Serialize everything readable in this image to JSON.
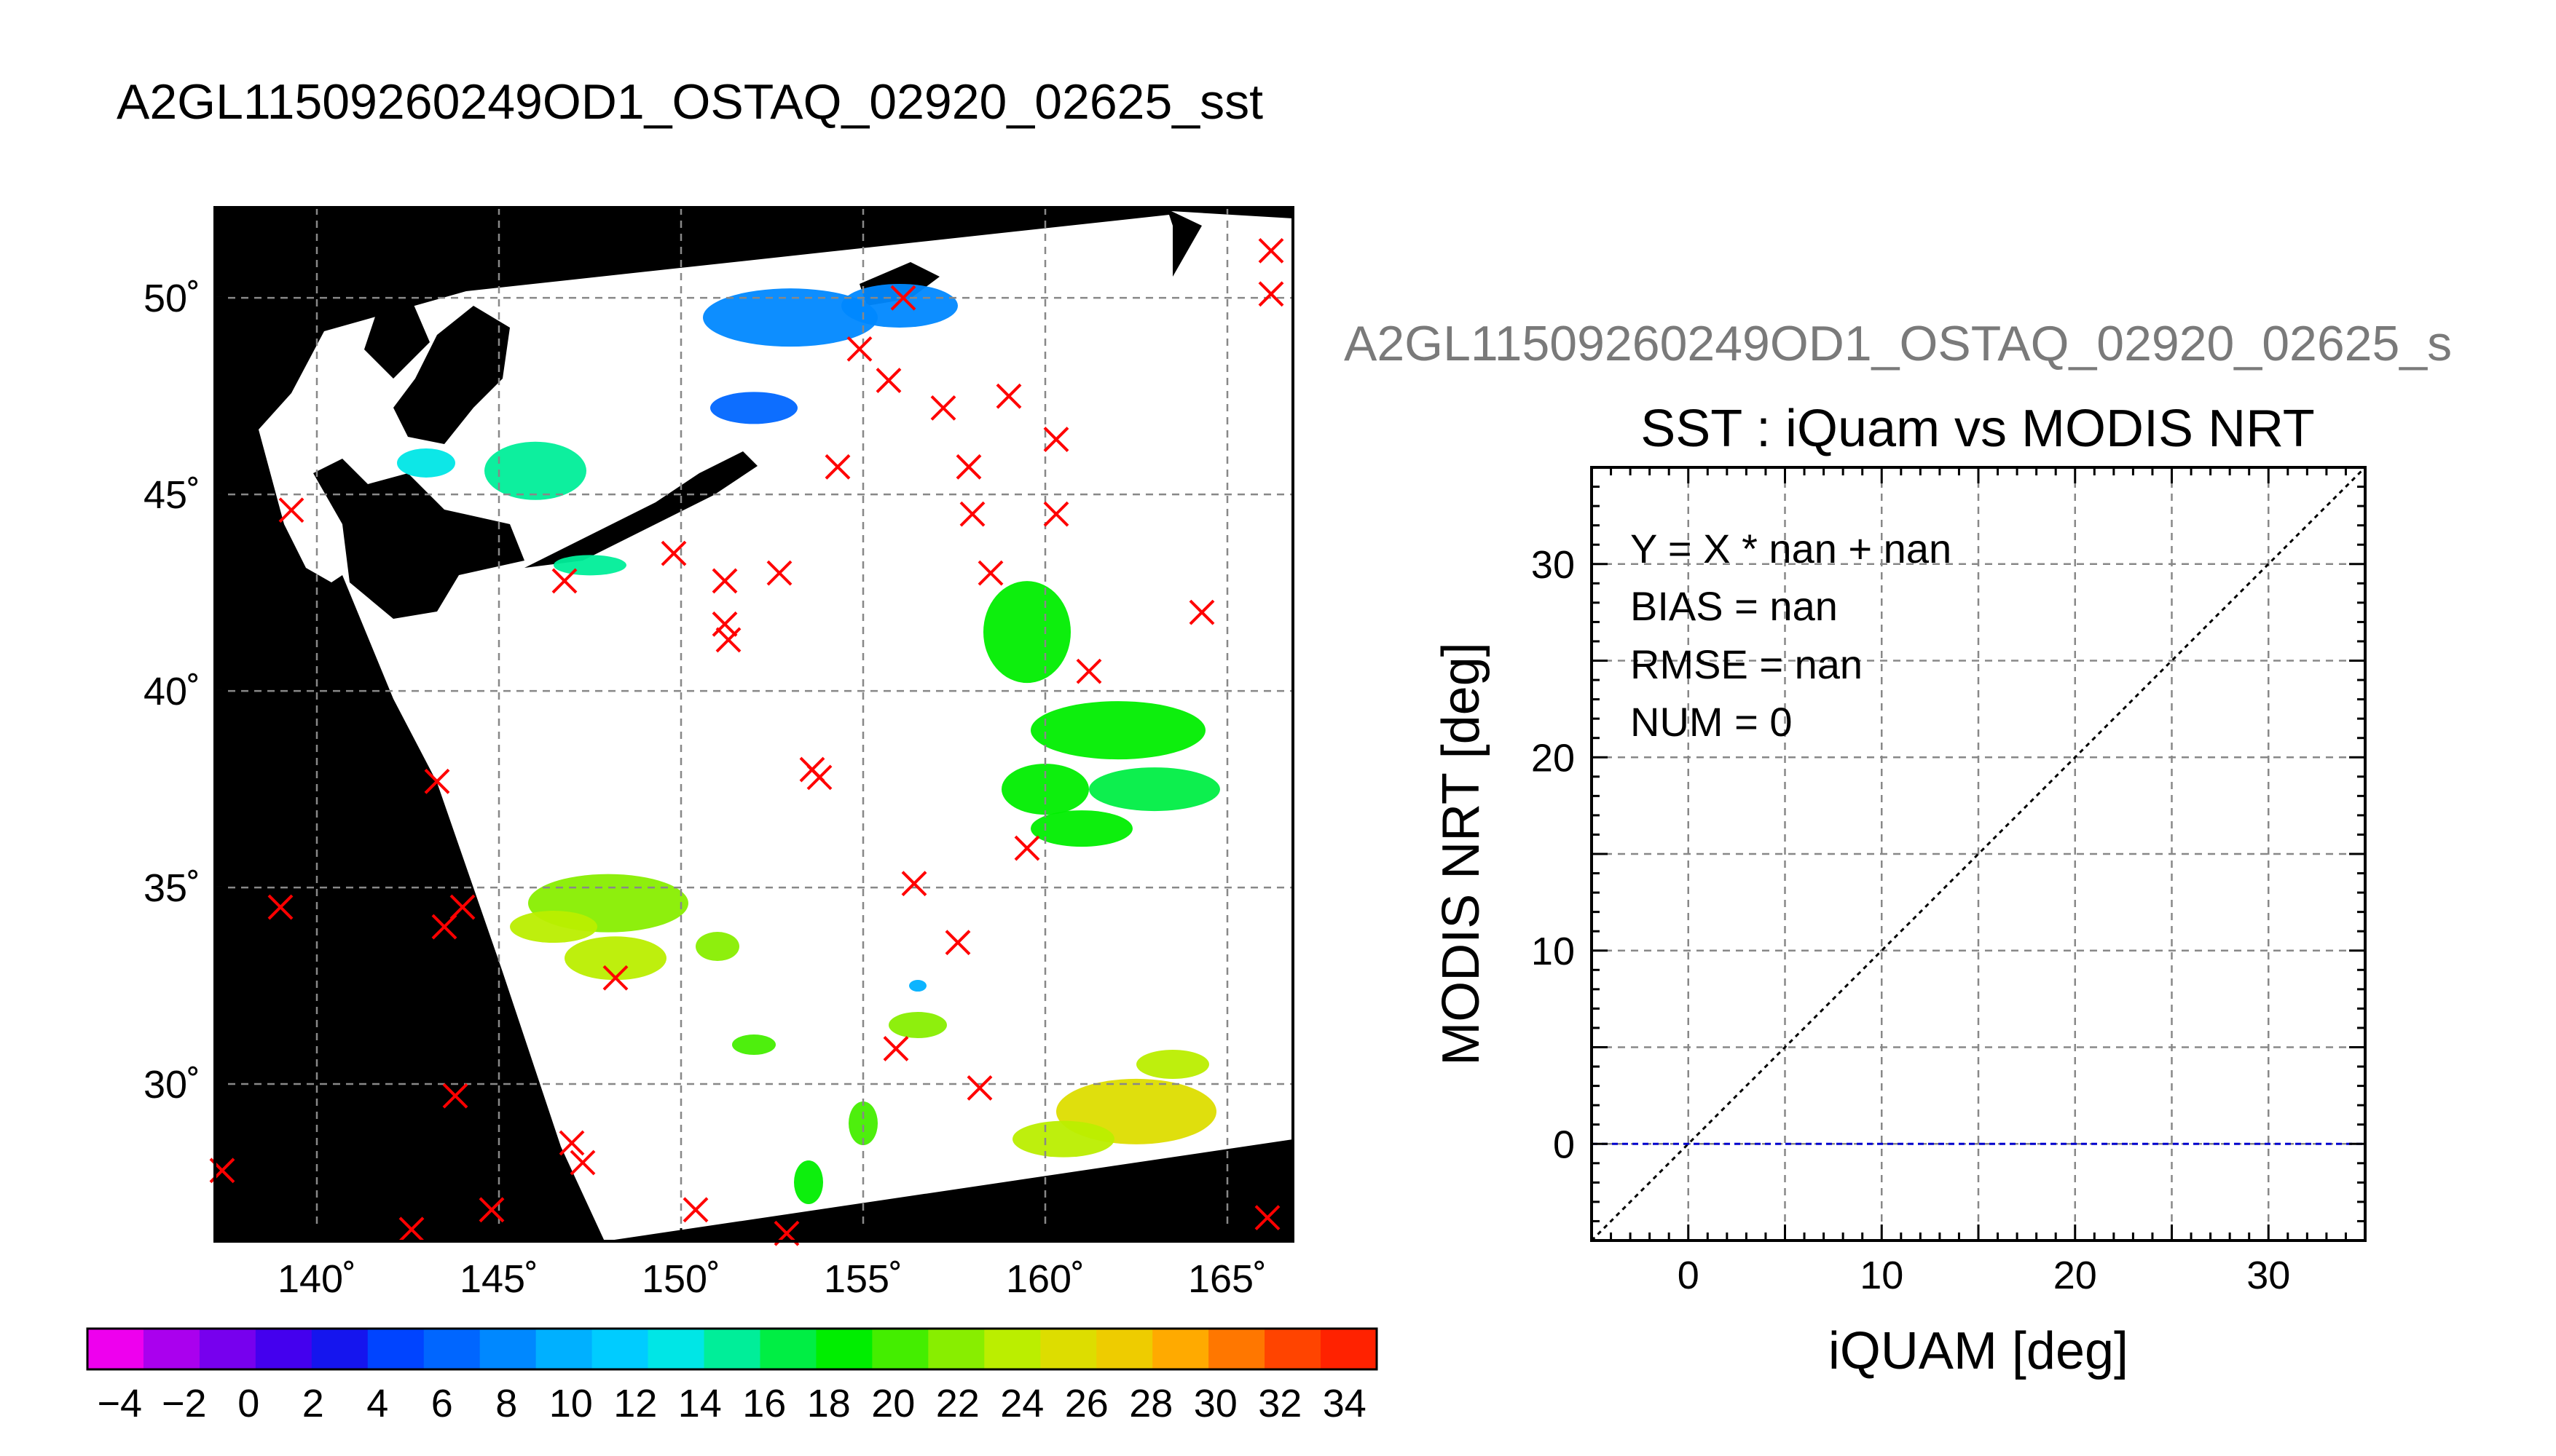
{
  "figure": {
    "title": "A2GL11509260249OD1_OSTAQ_02920_02625_sst",
    "subtitle": "A2GL11509260249OD1_OSTAQ_02920_02625_s"
  },
  "map": {
    "lon_range": [
      137.2,
      166.8
    ],
    "lat_range": [
      26.0,
      52.3
    ],
    "lon_ticks": [
      140,
      145,
      150,
      155,
      160,
      165
    ],
    "lon_tick_labels": [
      "140˚",
      "145˚",
      "150˚",
      "155˚",
      "160˚",
      "165˚"
    ],
    "lat_ticks": [
      30,
      35,
      40,
      45,
      50
    ],
    "lat_tick_labels": [
      "30˚",
      "35˚",
      "40˚",
      "45˚",
      "50˚"
    ],
    "swath_color": "#ffffff",
    "land_nodata_color": "#000000",
    "matchup_marker": "x",
    "matchup_color": "#ff0000",
    "matchups": [
      [
        139.3,
        44.6
      ],
      [
        139.0,
        34.5
      ],
      [
        137.4,
        27.8
      ],
      [
        142.6,
        26.3
      ],
      [
        143.3,
        37.7
      ],
      [
        143.5,
        34.0
      ],
      [
        144.0,
        34.5
      ],
      [
        143.8,
        29.7
      ],
      [
        144.8,
        26.8
      ],
      [
        146.8,
        42.8
      ],
      [
        147.0,
        28.5
      ],
      [
        147.3,
        28.0
      ],
      [
        148.2,
        32.7
      ],
      [
        149.8,
        43.5
      ],
      [
        151.2,
        42.8
      ],
      [
        151.2,
        41.7
      ],
      [
        151.3,
        41.3
      ],
      [
        152.7,
        43.0
      ],
      [
        150.4,
        26.8
      ],
      [
        152.9,
        26.2
      ],
      [
        153.6,
        38.0
      ],
      [
        153.8,
        37.8
      ],
      [
        154.3,
        45.7
      ],
      [
        154.9,
        48.7
      ],
      [
        155.7,
        47.9
      ],
      [
        156.1,
        50.0
      ],
      [
        156.4,
        35.1
      ],
      [
        155.9,
        30.9
      ],
      [
        157.2,
        47.2
      ],
      [
        157.6,
        33.6
      ],
      [
        157.9,
        45.7
      ],
      [
        158.0,
        44.5
      ],
      [
        158.5,
        43.0
      ],
      [
        158.2,
        29.9
      ],
      [
        159.0,
        47.5
      ],
      [
        159.5,
        36.0
      ],
      [
        160.3,
        46.4
      ],
      [
        160.3,
        44.5
      ],
      [
        161.2,
        40.5
      ],
      [
        164.3,
        42.0
      ],
      [
        166.2,
        51.2
      ],
      [
        166.2,
        50.1
      ],
      [
        166.1,
        26.6
      ]
    ]
  },
  "colorbar": {
    "min": -5,
    "max": 35,
    "step": 2,
    "tick_labels": [
      "−4",
      "−2",
      "0",
      "2",
      "4",
      "6",
      "8",
      "10",
      "12",
      "14",
      "16",
      "18",
      "20",
      "22",
      "24",
      "26",
      "28",
      "30",
      "32",
      "34"
    ],
    "tick_values": [
      -4,
      -2,
      0,
      2,
      4,
      6,
      8,
      10,
      12,
      14,
      16,
      18,
      20,
      22,
      24,
      26,
      28,
      30,
      32,
      34
    ],
    "colors": [
      "#ee00ee",
      "#aa00ee",
      "#7700ee",
      "#4400ee",
      "#1515ee",
      "#0044ff",
      "#0066ff",
      "#0088ff",
      "#00b0ff",
      "#00ccff",
      "#00e6e6",
      "#00ee99",
      "#00ee44",
      "#00ee00",
      "#44ee00",
      "#88ee00",
      "#bbee00",
      "#dddd00",
      "#eecc00",
      "#ffaa00",
      "#ff7700",
      "#ff4400",
      "#ff2200"
    ]
  },
  "chart_data": {
    "type": "scatter",
    "title": "SST : iQuam vs MODIS NRT",
    "xlabel": "iQUAM [deg]",
    "ylabel": "MODIS NRT [deg]",
    "xlim": [
      -5,
      35
    ],
    "ylim": [
      -5,
      35
    ],
    "xticks": [
      0,
      10,
      20,
      30
    ],
    "yticks": [
      0,
      10,
      20,
      30
    ],
    "grid": true,
    "series": [],
    "reference_lines": {
      "identity_color": "#000000",
      "fit_color": "#0000cc",
      "fit_level": 0
    },
    "stats": {
      "fit": "Y = X * nan + nan",
      "bias": "BIAS = nan",
      "rmse": "RMSE = nan",
      "num": "NUM = 0"
    }
  }
}
